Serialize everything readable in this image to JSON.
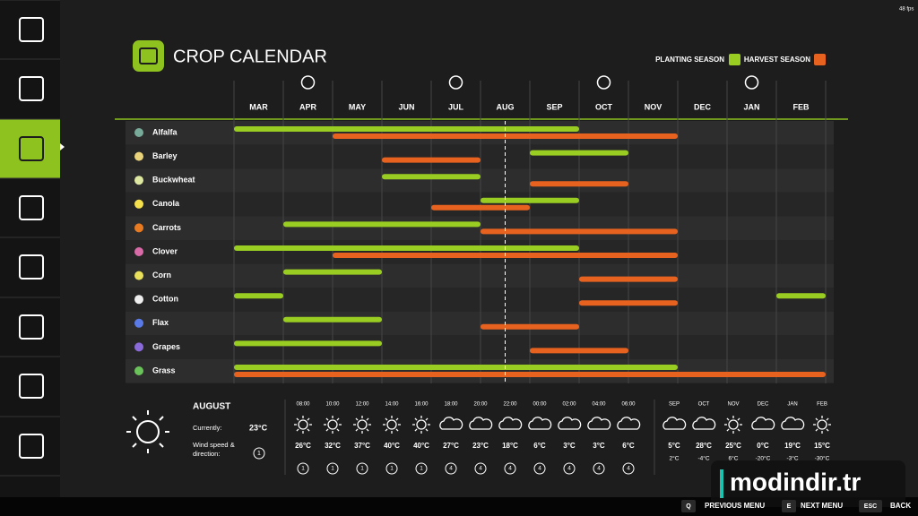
{
  "fps": "48 fps",
  "header": {
    "title": "CROP CALENDAR",
    "legend": {
      "planting": "PLANTING SEASON",
      "harvest": "HARVEST SEASON"
    }
  },
  "calendar": {
    "months": [
      "MAR",
      "APR",
      "MAY",
      "JUN",
      "JUL",
      "AUG",
      "SEP",
      "OCT",
      "NOV",
      "DEC",
      "JAN",
      "FEB"
    ],
    "crops": [
      {
        "name": "Alfalfa",
        "planting": [
          [
            "MAR",
            "SEP"
          ]
        ],
        "harvest": [
          [
            "MAY",
            "NOV"
          ]
        ]
      },
      {
        "name": "Barley",
        "planting": [
          [
            "SEP",
            "OCT"
          ]
        ],
        "harvest": [
          [
            "JUN",
            "JUL"
          ]
        ]
      },
      {
        "name": "Buckwheat",
        "planting": [
          [
            "JUN",
            "JUL"
          ]
        ],
        "harvest": [
          [
            "SEP",
            "OCT"
          ]
        ]
      },
      {
        "name": "Canola",
        "planting": [
          [
            "AUG",
            "SEP"
          ]
        ],
        "harvest": [
          [
            "JUL",
            "AUG"
          ]
        ]
      },
      {
        "name": "Carrots",
        "planting": [
          [
            "APR",
            "JUL"
          ]
        ],
        "harvest": [
          [
            "AUG",
            "NOV"
          ]
        ]
      },
      {
        "name": "Clover",
        "planting": [
          [
            "MAR",
            "SEP"
          ]
        ],
        "harvest": [
          [
            "MAY",
            "NOV"
          ]
        ]
      },
      {
        "name": "Corn",
        "planting": [
          [
            "APR",
            "MAY"
          ]
        ],
        "harvest": [
          [
            "OCT",
            "NOV"
          ]
        ]
      },
      {
        "name": "Cotton",
        "planting": [
          [
            "MAR",
            "MAR"
          ],
          [
            "FEB",
            "FEB"
          ]
        ],
        "harvest": [
          [
            "OCT",
            "NOV"
          ]
        ]
      },
      {
        "name": "Flax",
        "planting": [
          [
            "APR",
            "MAY"
          ]
        ],
        "harvest": [
          [
            "AUG",
            "SEP"
          ]
        ]
      },
      {
        "name": "Grapes",
        "planting": [
          [
            "MAR",
            "MAY"
          ]
        ],
        "harvest": [
          [
            "SEP",
            "OCT"
          ]
        ]
      },
      {
        "name": "Grass",
        "planting": [
          [
            "MAR",
            "NOV"
          ]
        ],
        "harvest": [
          [
            "MAR",
            "FEB"
          ]
        ]
      }
    ]
  },
  "weather": {
    "month": "AUGUST",
    "current_label": "Currently:",
    "current_temp": "23°C",
    "wind_label": "Wind speed & direction:",
    "wind_now": 1,
    "hourly": [
      {
        "time": "08:00",
        "temp": "26°C",
        "wind": 1
      },
      {
        "time": "10:00",
        "temp": "32°C",
        "wind": 1
      },
      {
        "time": "12:00",
        "temp": "37°C",
        "wind": 1
      },
      {
        "time": "14:00",
        "temp": "40°C",
        "wind": 1
      },
      {
        "time": "16:00",
        "temp": "40°C",
        "wind": 1
      },
      {
        "time": "18:00",
        "temp": "27°C",
        "wind": 4
      },
      {
        "time": "20:00",
        "temp": "23°C",
        "wind": 4
      },
      {
        "time": "22:00",
        "temp": "18°C",
        "wind": 4
      },
      {
        "time": "00:00",
        "temp": "6°C",
        "wind": 4
      },
      {
        "time": "02:00",
        "temp": "3°C",
        "wind": 4
      },
      {
        "time": "04:00",
        "temp": "3°C",
        "wind": 4
      },
      {
        "time": "06:00",
        "temp": "6°C",
        "wind": 4
      }
    ],
    "forecast": [
      {
        "month": "SEP",
        "high": "5°C",
        "low": "2°C"
      },
      {
        "month": "OCT",
        "high": "28°C",
        "low": "-4°C"
      },
      {
        "month": "NOV",
        "high": "25°C",
        "low": "6°C"
      },
      {
        "month": "DEC",
        "high": "0°C",
        "low": "-20°C"
      },
      {
        "month": "JAN",
        "high": "19°C",
        "low": "-3°C"
      },
      {
        "month": "FEB",
        "high": "15°C",
        "low": "-30°C"
      }
    ]
  },
  "footer": [
    {
      "key": "Q",
      "label": "PREVIOUS MENU"
    },
    {
      "key": "E",
      "label": "NEXT MENU"
    },
    {
      "key": "ESC",
      "label": "BACK"
    }
  ],
  "watermark": "modindir.tr"
}
